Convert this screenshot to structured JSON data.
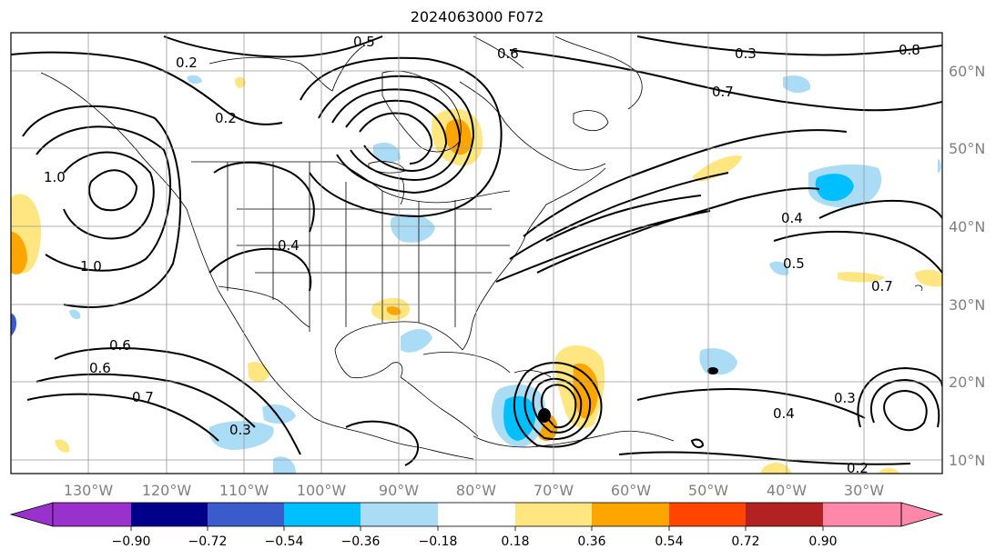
{
  "title": "2024063000 F072",
  "lat_labels": [
    "60°N",
    "50°N",
    "40°N",
    "30°N",
    "20°N",
    "10°N"
  ],
  "lon_labels": [
    "130°W",
    "120°W",
    "110°W",
    "100°W",
    "90°W",
    "80°W",
    "70°W",
    "60°W",
    "50°W",
    "40°W",
    "30°W"
  ],
  "contour_labels": [
    "0.5",
    "0.2",
    "0.6",
    "0.3",
    "0.7",
    "0.8",
    "1.0",
    "0.2",
    "0.4",
    "0.4",
    "1.0",
    "0.6",
    "0.7",
    "0.3",
    "0.5",
    "0.4",
    "0.3",
    "0.2",
    "0.6",
    "0.7"
  ],
  "colorbar": {
    "ticks": [
      "−0.90",
      "−0.72",
      "−0.54",
      "−0.36",
      "−0.18",
      "0.18",
      "0.36",
      "0.54",
      "0.72",
      "0.90"
    ],
    "colors": [
      "#9932cc",
      "#00008b",
      "#3a5bcc",
      "#00bfff",
      "#aadcf6",
      "#ffffff",
      "#ffe680",
      "#ffa500",
      "#ff4500",
      "#b22222",
      "#ff88aa"
    ]
  },
  "colors": {
    "frame": "#000000",
    "grid": "#999999",
    "axis_label": "#808080"
  }
}
